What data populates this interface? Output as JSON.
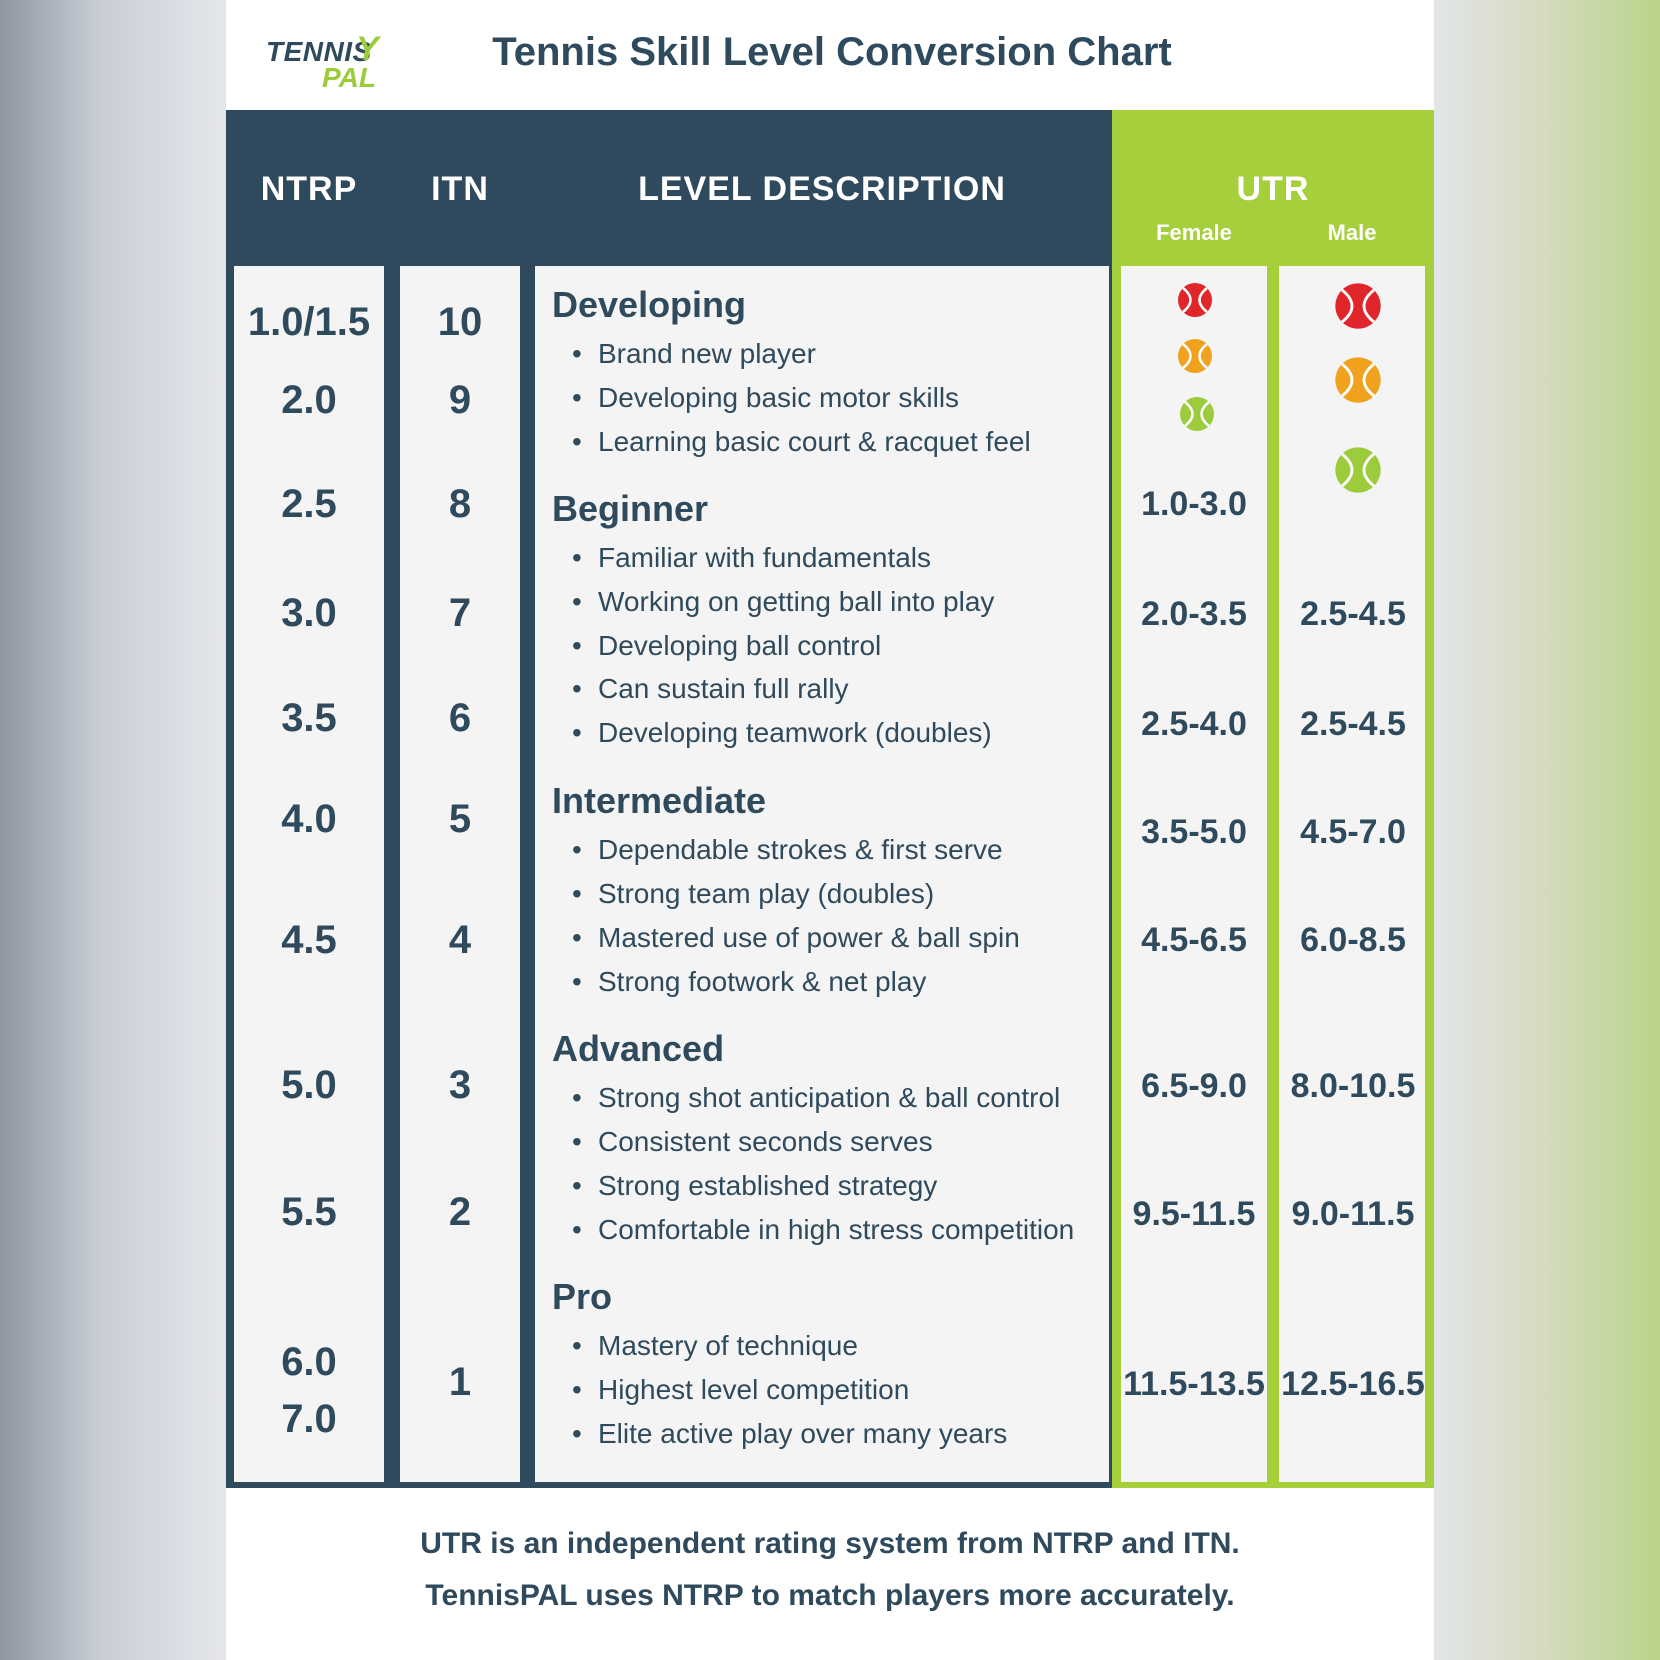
{
  "brand": {
    "logo_top": "TENNIS",
    "logo_bottom": "PAL",
    "logo_mark": "Y"
  },
  "title": "Tennis Skill Level Conversion Chart",
  "headers": {
    "ntrp": "NTRP",
    "itn": "ITN",
    "description": "LEVEL DESCRIPTION",
    "utr": "UTR",
    "female": "Female",
    "male": "Male"
  },
  "colors": {
    "navy": "#2f4a5c",
    "green": "#a6cf3c",
    "ball_red": "#e0262a",
    "ball_orange": "#f0a21e",
    "ball_green": "#9ccc3c"
  },
  "ntrp_values": [
    "1.0/1.5",
    "2.0",
    "2.5",
    "3.0",
    "3.5",
    "4.0",
    "4.5",
    "5.0",
    "5.5",
    "6.0",
    "7.0"
  ],
  "itn_values": [
    "10",
    "9",
    "8",
    "7",
    "6",
    "5",
    "4",
    "3",
    "2",
    "1"
  ],
  "levels": [
    {
      "title": "Developing",
      "bullets": [
        "Brand new player",
        "Developing basic motor skills",
        "Learning basic court & racquet feel"
      ]
    },
    {
      "title": "Beginner",
      "bullets": [
        "Familiar with fundamentals",
        "Working on getting ball into play",
        "Developing ball control",
        "Can sustain full rally",
        "Developing teamwork (doubles)"
      ]
    },
    {
      "title": "Intermediate",
      "bullets": [
        "Dependable strokes & first serve",
        "Strong team play (doubles)",
        "Mastered use of power & ball spin",
        "Strong footwork & net play"
      ]
    },
    {
      "title": "Advanced",
      "bullets": [
        "Strong shot anticipation & ball control",
        "Consistent seconds serves",
        "Strong established strategy",
        "Comfortable in high stress competition"
      ]
    },
    {
      "title": "Pro",
      "bullets": [
        "Mastery of technique",
        "Highest level competition",
        "Elite active play over many years"
      ]
    }
  ],
  "utr_female": [
    "1.0-3.0",
    "2.0-3.5",
    "2.5-4.0",
    "3.5-5.0",
    "4.5-6.5",
    "6.5-9.0",
    "9.5-11.5",
    "11.5-13.5"
  ],
  "utr_male": [
    "2.5-4.5",
    "2.5-4.5",
    "4.5-7.0",
    "6.0-8.5",
    "8.0-10.5",
    "9.0-11.5",
    "12.5-16.5"
  ],
  "balls": [
    "red-ball-icon",
    "orange-ball-icon",
    "green-ball-icon"
  ],
  "footer": {
    "line1": "UTR is an independent rating system from NTRP and ITN.",
    "line2": "TennisPAL uses NTRP to match players more accurately."
  }
}
